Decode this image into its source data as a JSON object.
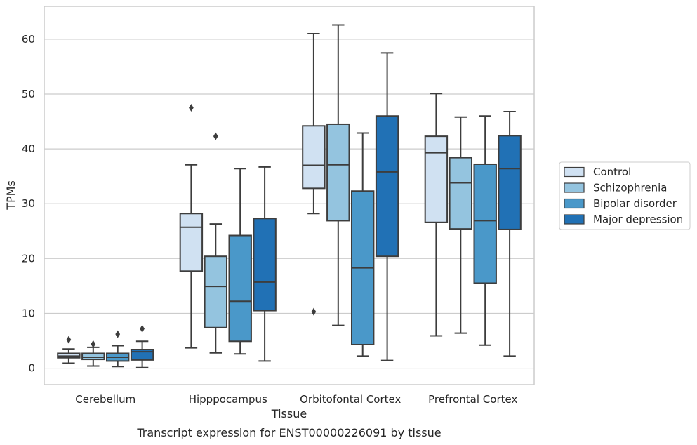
{
  "chart_data": {
    "type": "box",
    "caption": "Transcript expression for ENST00000226091 by tissue",
    "xlabel": "Tissue",
    "ylabel": "TPMs",
    "ylim": [
      -3,
      66
    ],
    "yticks": [
      0,
      10,
      20,
      30,
      40,
      50,
      60
    ],
    "grid": "horizontal",
    "legend_position": "right",
    "categories": [
      "Cerebellum",
      "Hipppocampus",
      "Orbitofontal Cortex",
      "Prefrontal Cortex"
    ],
    "series": [
      {
        "name": "Control",
        "color": "#d0e1f2",
        "boxes": [
          {
            "whislo": 0.9,
            "q1": 1.9,
            "med": 2.2,
            "q3": 2.7,
            "whishi": 3.5,
            "fliers": [
              5.2
            ]
          },
          {
            "whislo": 3.7,
            "q1": 17.7,
            "med": 25.7,
            "q3": 28.2,
            "whishi": 37.1,
            "fliers": [
              47.5
            ]
          },
          {
            "whislo": 28.2,
            "q1": 32.8,
            "med": 37.0,
            "q3": 44.2,
            "whishi": 61.0,
            "fliers": [
              10.3
            ]
          },
          {
            "whislo": 5.9,
            "q1": 26.6,
            "med": 39.3,
            "q3": 42.3,
            "whishi": 50.1,
            "fliers": []
          }
        ]
      },
      {
        "name": "Schizophrenia",
        "color": "#94c4df",
        "boxes": [
          {
            "whislo": 0.4,
            "q1": 1.6,
            "med": 2.0,
            "q3": 2.7,
            "whishi": 3.8,
            "fliers": [
              4.4
            ]
          },
          {
            "whislo": 2.8,
            "q1": 7.4,
            "med": 14.9,
            "q3": 20.4,
            "whishi": 26.3,
            "fliers": [
              42.3
            ]
          },
          {
            "whislo": 7.8,
            "q1": 26.9,
            "med": 37.1,
            "q3": 44.5,
            "whishi": 62.6,
            "fliers": []
          },
          {
            "whislo": 6.4,
            "q1": 25.4,
            "med": 33.8,
            "q3": 38.4,
            "whishi": 45.8,
            "fliers": []
          }
        ]
      },
      {
        "name": "Bipolar disorder",
        "color": "#4a98c9",
        "boxes": [
          {
            "whislo": 0.3,
            "q1": 1.3,
            "med": 2.0,
            "q3": 2.7,
            "whishi": 4.1,
            "fliers": [
              6.2
            ]
          },
          {
            "whislo": 2.6,
            "q1": 4.9,
            "med": 12.2,
            "q3": 24.2,
            "whishi": 36.4,
            "fliers": []
          },
          {
            "whislo": 2.2,
            "q1": 4.3,
            "med": 18.3,
            "q3": 32.3,
            "whishi": 42.9,
            "fliers": []
          },
          {
            "whislo": 4.2,
            "q1": 15.5,
            "med": 26.9,
            "q3": 37.2,
            "whishi": 46.0,
            "fliers": []
          }
        ]
      },
      {
        "name": "Major depression",
        "color": "#2171b5",
        "boxes": [
          {
            "whislo": 0.1,
            "q1": 1.5,
            "med": 3.0,
            "q3": 3.4,
            "whishi": 4.9,
            "fliers": [
              7.2
            ]
          },
          {
            "whislo": 1.3,
            "q1": 10.5,
            "med": 15.7,
            "q3": 27.3,
            "whishi": 36.7,
            "fliers": []
          },
          {
            "whislo": 1.4,
            "q1": 20.4,
            "med": 35.8,
            "q3": 46.0,
            "whishi": 57.5,
            "fliers": []
          },
          {
            "whislo": 2.2,
            "q1": 25.3,
            "med": 36.4,
            "q3": 42.4,
            "whishi": 46.8,
            "fliers": []
          }
        ]
      }
    ]
  }
}
